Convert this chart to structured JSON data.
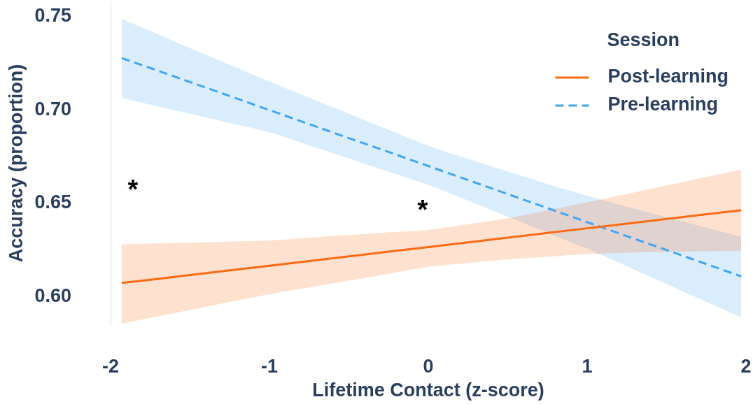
{
  "chart_data": {
    "type": "line",
    "xlabel": "Lifetime Contact (z-score)",
    "ylabel": "Accuracy (proportion)",
    "legend_title": "Session",
    "legend": "top right",
    "x": [
      -1.93,
      -1.75,
      -1.5,
      -1.25,
      -1,
      -0.75,
      -0.5,
      -0.25,
      0,
      0.25,
      0.5,
      0.75,
      1,
      1.25,
      1.5,
      1.75,
      1.97
    ],
    "series": [
      {
        "name": "Post-learning",
        "color": "#ff6a13",
        "line_style": "solid",
        "values": [
          0.6075,
          0.6092,
          0.6117,
          0.6142,
          0.6167,
          0.6192,
          0.6217,
          0.6242,
          0.6267,
          0.6292,
          0.6317,
          0.6342,
          0.6367,
          0.6392,
          0.6417,
          0.6442,
          0.6464
        ],
        "lower": [
          0.5857,
          0.5888,
          0.593,
          0.5973,
          0.6014,
          0.6051,
          0.6087,
          0.6124,
          0.6161,
          0.6182,
          0.62,
          0.6215,
          0.6229,
          0.6237,
          0.624,
          0.6244,
          0.6247
        ],
        "upper": [
          0.6281,
          0.6285,
          0.6291,
          0.6296,
          0.6302,
          0.6317,
          0.6331,
          0.6345,
          0.6359,
          0.6389,
          0.6421,
          0.6463,
          0.6506,
          0.6551,
          0.6596,
          0.6641,
          0.668
        ]
      },
      {
        "name": "Pre-learning",
        "color": "#42a5f5",
        "line_style": "dashed",
        "values": [
          0.7277,
          0.7224,
          0.7149,
          0.7074,
          0.6999,
          0.6924,
          0.6849,
          0.6775,
          0.67,
          0.6625,
          0.655,
          0.6475,
          0.64,
          0.6325,
          0.6251,
          0.6176,
          0.611
        ],
        "lower": [
          0.7063,
          0.7028,
          0.6979,
          0.693,
          0.688,
          0.681,
          0.674,
          0.6669,
          0.6599,
          0.6515,
          0.6429,
          0.6343,
          0.6257,
          0.6164,
          0.6069,
          0.5974,
          0.589
        ],
        "upper": [
          0.7487,
          0.7422,
          0.7331,
          0.7241,
          0.7151,
          0.7065,
          0.6979,
          0.6893,
          0.6808,
          0.6738,
          0.667,
          0.6604,
          0.6541,
          0.6482,
          0.6426,
          0.637,
          0.6322
        ]
      }
    ],
    "xlim": [
      -2,
      2
    ],
    "xticks": [
      -2,
      -1,
      0,
      1,
      2
    ],
    "ylim": [
      0.585,
      0.758
    ],
    "yticks": [
      {
        "value": 0.6,
        "label": "0.60"
      },
      {
        "value": 0.65,
        "label": "0.65"
      },
      {
        "value": 0.7,
        "label": "0.70"
      },
      {
        "value": 0.75,
        "label": "0.75"
      }
    ],
    "annotations": [
      "*",
      "*"
    ]
  }
}
